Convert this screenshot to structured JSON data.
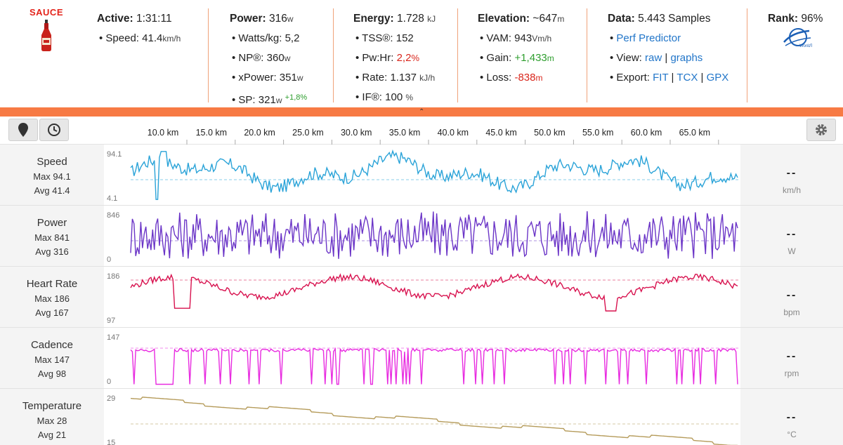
{
  "logo": {
    "brand": "SAUCE"
  },
  "active": {
    "label": "Active:",
    "value": "1:31:11",
    "speed_label": "Speed:",
    "speed_value": "41.4",
    "speed_unit": "km/h"
  },
  "power": {
    "label": "Power:",
    "value": "316",
    "unit": "w",
    "wkg_label": "Watts/kg:",
    "wkg_value": "5,2",
    "np_label": "NP®:",
    "np_value": "360",
    "np_unit": "w",
    "xp_label": "xPower:",
    "xp_value": "351",
    "xp_unit": "w",
    "sp_label": "SP:",
    "sp_value": "321",
    "sp_unit": "w",
    "sp_delta": "+1,8%"
  },
  "energy": {
    "label": "Energy:",
    "value": "1.728",
    "unit": "kJ",
    "tss_label": "TSS®:",
    "tss_value": "152",
    "pwhr_label": "Pw:Hr:",
    "pwhr_value": "2,2",
    "pwhr_unit": "%",
    "rate_label": "Rate:",
    "rate_value": "1.137",
    "rate_unit": "kJ/h",
    "if_label": "IF®:",
    "if_value": "100",
    "if_unit": "%"
  },
  "elevation": {
    "label": "Elevation:",
    "value": "~647",
    "unit": "m",
    "vam_label": "VAM:",
    "vam_value": "943",
    "vam_unit": "Vm/h",
    "gain_label": "Gain:",
    "gain_value": "+1,433",
    "gain_unit": "m",
    "loss_label": "Loss:",
    "loss_value": "-838",
    "loss_unit": "m"
  },
  "data": {
    "label": "Data:",
    "value": "5.443 Samples",
    "perf_link": "Perf Predictor",
    "view_label": "View:",
    "view_raw": "raw",
    "view_graphs": "graphs",
    "sep": "|",
    "export_label": "Export:",
    "export_fit": "FIT",
    "export_tcx": "TCX",
    "export_gpx": "GPX"
  },
  "rank": {
    "label": "Rank:",
    "value": "96%"
  },
  "toolbar": {
    "ticks": [
      "10.0 km",
      "15.0 km",
      "20.0 km",
      "25.0 km",
      "30.0 km",
      "35.0 km",
      "40.0 km",
      "45.0 km",
      "50.0 km",
      "55.0 km",
      "60.0 km",
      "65.0 km"
    ]
  },
  "graphs": [
    {
      "title": "Speed",
      "max": "Max 94.1",
      "avg": "Avg 41.4",
      "ymax": "94.1",
      "ymin": "4.1",
      "unit": "km/h",
      "placeholder": "--",
      "color": "#2aa3d8"
    },
    {
      "title": "Power",
      "max": "Max 841",
      "avg": "Avg 316",
      "ymax": "846",
      "ymin": "0",
      "unit": "W",
      "placeholder": "--",
      "color": "#6b35c7"
    },
    {
      "title": "Heart Rate",
      "max": "Max 186",
      "avg": "Avg 167",
      "ymax": "186",
      "ymin": "97",
      "unit": "bpm",
      "placeholder": "--",
      "color": "#d8124f"
    },
    {
      "title": "Cadence",
      "max": "Max 147",
      "avg": "Avg 98",
      "ymax": "147",
      "ymin": "0",
      "unit": "rpm",
      "placeholder": "--",
      "color": "#e82be0"
    },
    {
      "title": "Temperature",
      "max": "Max 28",
      "avg": "Avg 21",
      "ymax": "29",
      "ymin": "15",
      "unit": "°C",
      "placeholder": "--",
      "color": "#b59b5a"
    }
  ]
}
